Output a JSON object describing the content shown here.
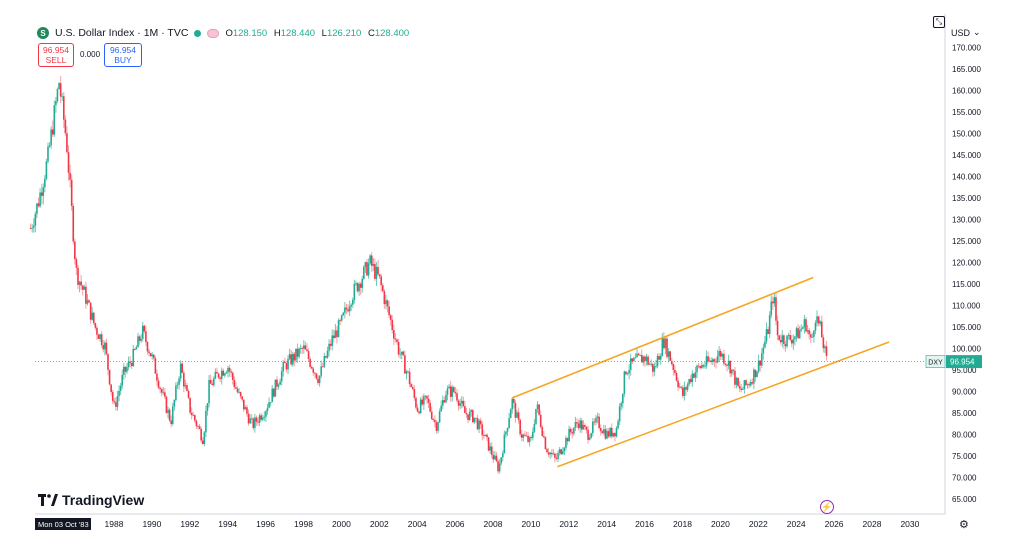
{
  "header": {
    "symbol_icon": "S",
    "title": "U.S. Dollar Index · 1M · TVC",
    "ohlc": [
      {
        "key": "O",
        "value": "128.150"
      },
      {
        "key": "H",
        "value": "128.440"
      },
      {
        "key": "L",
        "value": "126.210"
      },
      {
        "key": "C",
        "value": "128.400"
      }
    ]
  },
  "trade": {
    "sell_price": "96.954",
    "sell_label": "SELL",
    "spread": "0.000",
    "buy_price": "96.954",
    "buy_label": "BUY"
  },
  "axis": {
    "currency": "USD",
    "currency_caret": "⌄",
    "corner_icon": "⤡"
  },
  "brand": {
    "name": "TradingView"
  },
  "icons": {
    "bolt": "⚡",
    "gear": "⚙"
  },
  "colors": {
    "up": "#22ab94",
    "down": "#f23645",
    "up_wick": "#6cc9b5",
    "down_wick": "#f5a0a8",
    "channel": "#f6a623",
    "price_line": "#22ab94",
    "price_label_bg": "#22ab94",
    "axis_bg": "#ffffff",
    "time_label_bg": "#131722"
  },
  "chart_data": {
    "type": "candlestick",
    "symbol": "DXY",
    "last_price": "96.954",
    "cursor_time_label": "Mon 03 Oct '83",
    "ylim": [
      62.5,
      174.0
    ],
    "xlim": [
      1983.6,
      2031.0
    ],
    "y_ticks": [
      "65.000",
      "70.000",
      "75.000",
      "80.000",
      "85.000",
      "90.000",
      "95.000",
      "100.000",
      "105.000",
      "110.000",
      "115.000",
      "120.000",
      "125.000",
      "130.000",
      "135.000",
      "140.000",
      "145.000",
      "150.000",
      "155.000",
      "160.000",
      "165.000",
      "170.000"
    ],
    "x_ticks": [
      "1988",
      "1990",
      "1992",
      "1994",
      "1996",
      "1998",
      "2000",
      "2002",
      "2004",
      "2006",
      "2008",
      "2010",
      "2012",
      "2014",
      "2016",
      "2018",
      "2020",
      "2022",
      "2024",
      "2026",
      "2028",
      "2030"
    ],
    "anchors": [
      [
        1983.6,
        128.0
      ],
      [
        1984.0,
        134.0
      ],
      [
        1984.5,
        144.0
      ],
      [
        1985.1,
        162.0
      ],
      [
        1985.5,
        148.0
      ],
      [
        1986.0,
        118.0
      ],
      [
        1986.5,
        112.0
      ],
      [
        1987.0,
        105.0
      ],
      [
        1987.5,
        101.0
      ],
      [
        1988.0,
        86.0
      ],
      [
        1988.5,
        94.0
      ],
      [
        1989.0,
        98.0
      ],
      [
        1989.5,
        104.0
      ],
      [
        1990.0,
        98.0
      ],
      [
        1990.5,
        90.0
      ],
      [
        1991.0,
        83.0
      ],
      [
        1991.5,
        96.0
      ],
      [
        1992.0,
        86.0
      ],
      [
        1992.7,
        79.0
      ],
      [
        1993.0,
        91.0
      ],
      [
        1993.5,
        94.0
      ],
      [
        1994.0,
        96.0
      ],
      [
        1994.5,
        90.0
      ],
      [
        1995.3,
        82.0
      ],
      [
        1996.0,
        86.0
      ],
      [
        1997.0,
        96.0
      ],
      [
        1997.5,
        98.0
      ],
      [
        1998.0,
        100.0
      ],
      [
        1998.8,
        93.0
      ],
      [
        1999.5,
        102.0
      ],
      [
        2000.0,
        106.0
      ],
      [
        2000.5,
        112.0
      ],
      [
        2001.0,
        116.0
      ],
      [
        2001.5,
        120.0
      ],
      [
        2002.0,
        116.0
      ],
      [
        2002.5,
        108.0
      ],
      [
        2003.0,
        100.0
      ],
      [
        2003.5,
        94.0
      ],
      [
        2004.0,
        86.0
      ],
      [
        2004.5,
        88.0
      ],
      [
        2005.0,
        82.0
      ],
      [
        2005.5,
        90.0
      ],
      [
        2006.0,
        90.0
      ],
      [
        2006.5,
        85.0
      ],
      [
        2007.0,
        84.0
      ],
      [
        2007.5,
        80.0
      ],
      [
        2008.0,
        75.0
      ],
      [
        2008.3,
        72.0
      ],
      [
        2009.0,
        88.0
      ],
      [
        2009.5,
        80.0
      ],
      [
        2010.0,
        78.0
      ],
      [
        2010.3,
        87.0
      ],
      [
        2010.8,
        77.0
      ],
      [
        2011.3,
        74.0
      ],
      [
        2012.0,
        80.0
      ],
      [
        2012.5,
        83.0
      ],
      [
        2013.0,
        80.0
      ],
      [
        2013.5,
        83.0
      ],
      [
        2014.0,
        80.0
      ],
      [
        2014.5,
        81.0
      ],
      [
        2015.0,
        95.0
      ],
      [
        2015.5,
        97.0
      ],
      [
        2016.0,
        98.0
      ],
      [
        2016.5,
        95.0
      ],
      [
        2017.0,
        102.0
      ],
      [
        2017.5,
        96.0
      ],
      [
        2018.0,
        89.0
      ],
      [
        2018.5,
        94.0
      ],
      [
        2019.0,
        96.0
      ],
      [
        2019.5,
        97.0
      ],
      [
        2020.0,
        99.0
      ],
      [
        2020.5,
        96.0
      ],
      [
        2021.0,
        90.0
      ],
      [
        2021.5,
        92.0
      ],
      [
        2022.0,
        96.0
      ],
      [
        2022.5,
        104.0
      ],
      [
        2022.8,
        113.0
      ],
      [
        2023.0,
        103.0
      ],
      [
        2023.5,
        102.0
      ],
      [
        2024.0,
        103.0
      ],
      [
        2024.5,
        106.0
      ],
      [
        2024.8,
        101.0
      ],
      [
        2025.0,
        108.0
      ],
      [
        2025.3,
        104.0
      ],
      [
        2025.6,
        97.0
      ]
    ],
    "channel_lines": [
      {
        "from": [
          2009.0,
          88.5
        ],
        "to": [
          2024.9,
          116.5
        ]
      },
      {
        "from": [
          2011.4,
          72.5
        ],
        "to": [
          2028.9,
          101.5
        ]
      }
    ]
  }
}
